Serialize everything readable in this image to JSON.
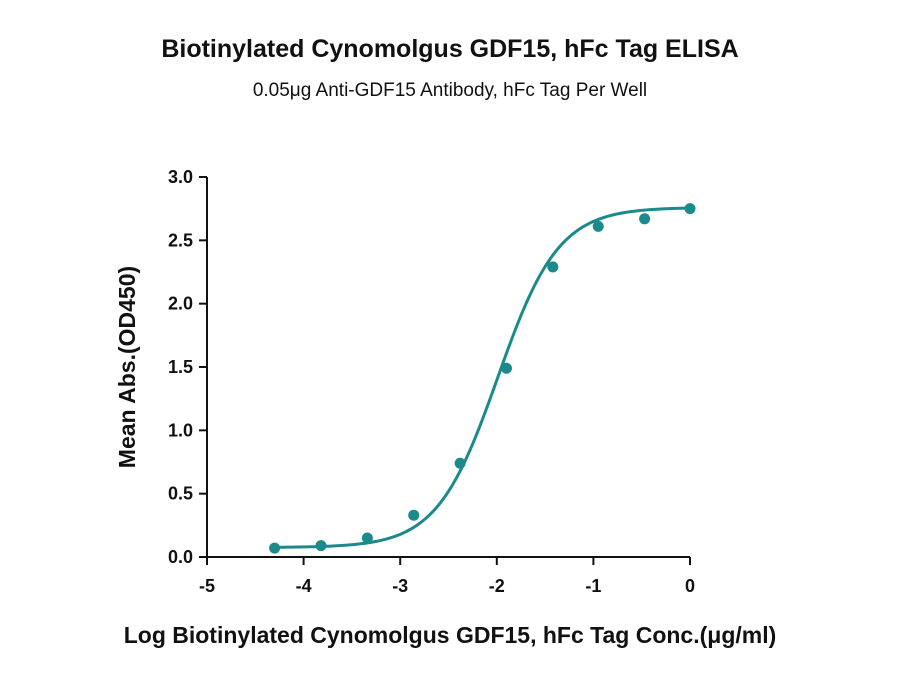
{
  "chart_data": {
    "type": "scatter",
    "title": "Biotinylated Cynomolgus GDF15, hFc Tag ELISA",
    "subtitle": "0.05μg Anti-GDF15 Antibody, hFc Tag Per Well",
    "xlabel": "Log Biotinylated Cynomolgus GDF15, hFc Tag Conc.(μg/ml)",
    "ylabel": "Mean Abs.(OD450)",
    "xlim": [
      -5,
      0
    ],
    "ylim": [
      0,
      3.0
    ],
    "xticks": [
      -5,
      -4,
      -3,
      -2,
      -1,
      0
    ],
    "xtick_labels": [
      "-5",
      "-4",
      "-3",
      "-2",
      "-1",
      "0"
    ],
    "yticks": [
      0,
      0.5,
      1.0,
      1.5,
      2.0,
      2.5,
      3.0
    ],
    "ytick_labels": [
      "0.0",
      "0.5",
      "1.0",
      "1.5",
      "2.0",
      "2.5",
      "3.0"
    ],
    "grid": false,
    "color": "#1a8a8a",
    "series": [
      {
        "x": [
          -4.3,
          -3.82,
          -3.34,
          -2.86,
          -2.38,
          -1.9,
          -1.42,
          -0.95,
          -0.47,
          0.0
        ],
        "y": [
          0.07,
          0.09,
          0.15,
          0.33,
          0.74,
          1.49,
          2.29,
          2.61,
          2.67,
          2.75
        ],
        "fit": {
          "model": "4PL",
          "bottom": 0.075,
          "top": 2.76,
          "logEC50": -1.99,
          "hill": 1.38,
          "x_range": [
            -4.3,
            0.0
          ]
        }
      }
    ]
  }
}
